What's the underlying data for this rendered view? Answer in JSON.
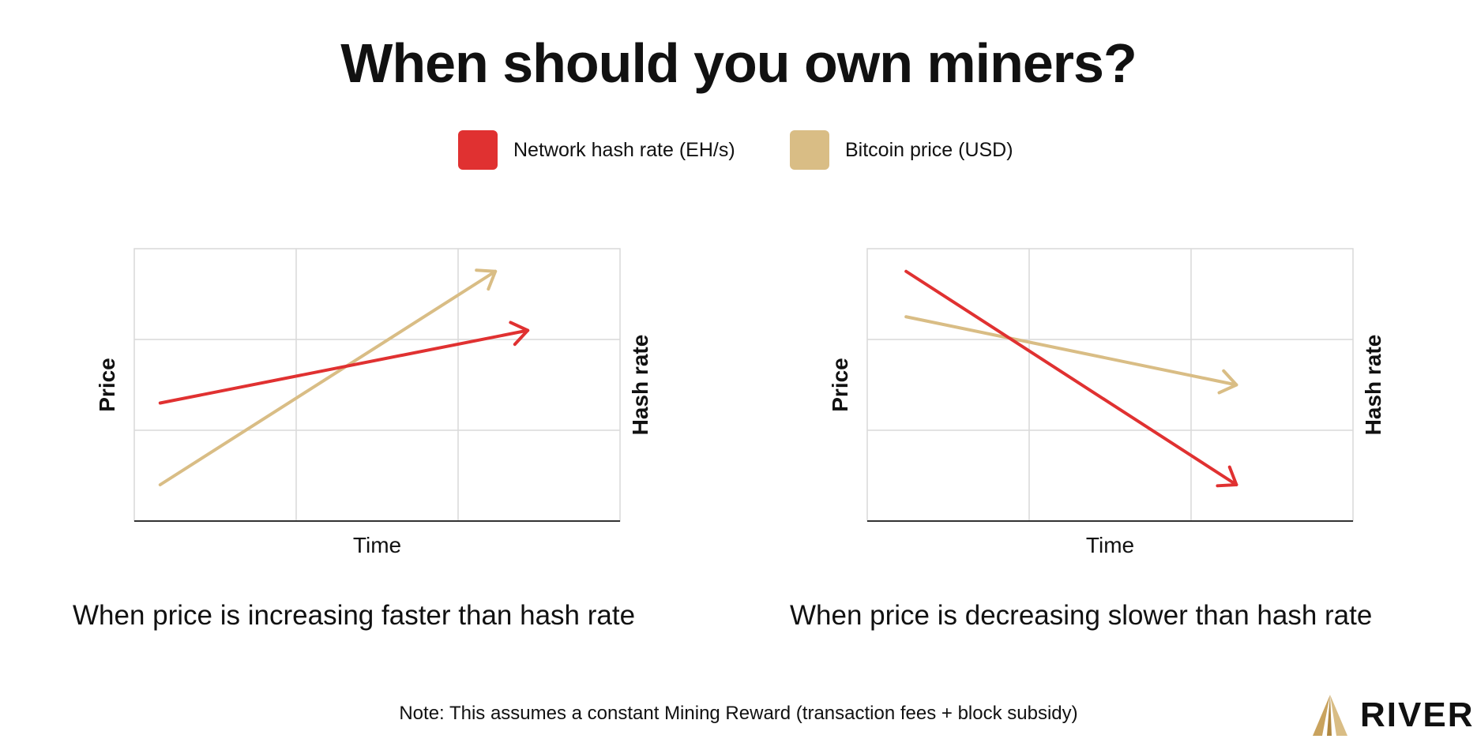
{
  "title": "When should you own miners?",
  "legend": [
    {
      "label": "Network hash rate (EH/s)",
      "color": "#e03131"
    },
    {
      "label": "Bitcoin price (USD)",
      "color": "#d9bd85"
    }
  ],
  "colors": {
    "hash_rate": "#e03131",
    "price": "#d9bd85",
    "grid": "#d9d9d9",
    "axis": "#333333"
  },
  "chart_data": [
    {
      "type": "line",
      "caption": "When price is increasing faster than hash rate",
      "xlabel": "Time",
      "ylabel_left": "Price",
      "ylabel_right": "Hash rate",
      "grid": true,
      "xlim": [
        0,
        3
      ],
      "ylim": [
        0,
        3
      ],
      "series": [
        {
          "name": "Network hash rate (EH/s)",
          "x": [
            0.16,
            2.43
          ],
          "y": [
            1.3,
            2.1
          ]
        },
        {
          "name": "Bitcoin price (USD)",
          "x": [
            0.16,
            2.23
          ],
          "y": [
            0.4,
            2.75
          ]
        }
      ]
    },
    {
      "type": "line",
      "caption": "When price is decreasing slower than hash rate",
      "xlabel": "Time",
      "ylabel_left": "Price",
      "ylabel_right": "Hash rate",
      "grid": true,
      "xlim": [
        0,
        3
      ],
      "ylim": [
        0,
        3
      ],
      "series": [
        {
          "name": "Network hash rate (EH/s)",
          "x": [
            0.24,
            2.28
          ],
          "y": [
            2.75,
            0.4
          ]
        },
        {
          "name": "Bitcoin price (USD)",
          "x": [
            0.24,
            2.28
          ],
          "y": [
            2.25,
            1.5
          ]
        }
      ]
    }
  ],
  "note": "Note: This assumes a constant Mining Reward (transaction fees + block subsidy)",
  "logo": {
    "text": "RIVER",
    "icon": "river-mountain-icon",
    "color": "#c9a35e"
  }
}
